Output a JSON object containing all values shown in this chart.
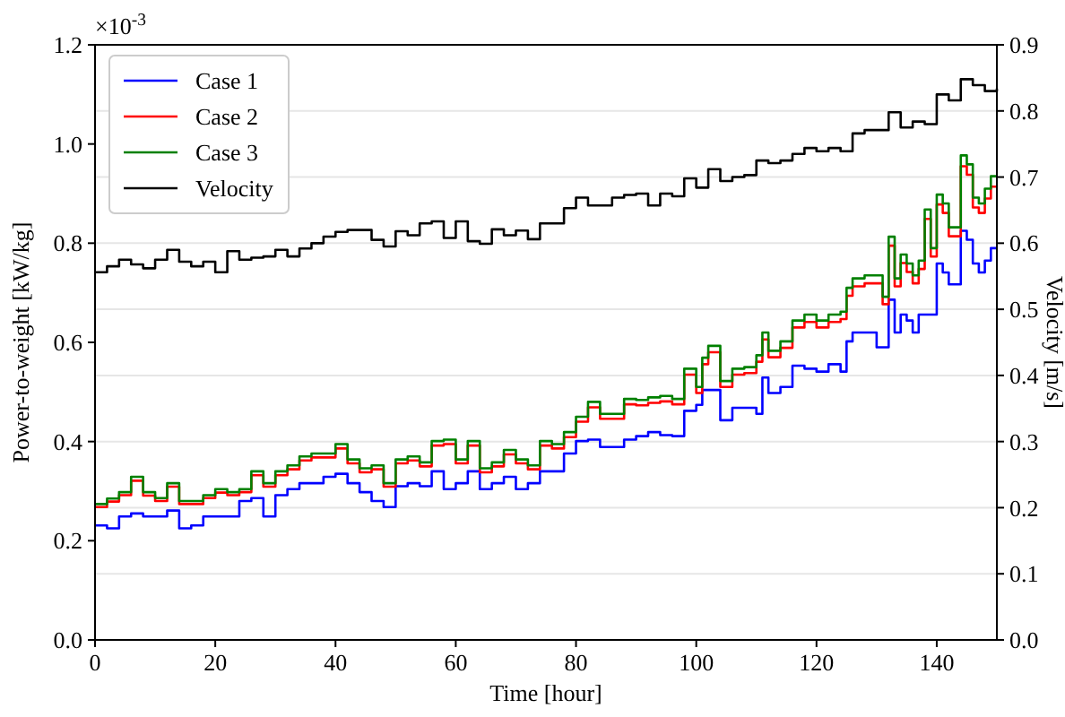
{
  "chart_data": {
    "type": "step",
    "xlabel": "Time [hour]",
    "ylabel": "Power-to-weight [kW/kg]",
    "y2label": "Velocity [m/s]",
    "annotations": [
      "×10$^{-3}$"
    ],
    "xlim": [
      0,
      150
    ],
    "xticks": [
      0,
      20,
      40,
      60,
      80,
      100,
      120,
      140
    ],
    "ylim": [
      0,
      1.2
    ],
    "yticks": [
      {
        "value": 0,
        "label": "0.0"
      },
      {
        "value": 0.2,
        "label": "0.2"
      },
      {
        "value": 0.4,
        "label": "0.4"
      },
      {
        "value": 0.6,
        "label": "0.6"
      },
      {
        "value": 0.8,
        "label": "0.8"
      },
      {
        "value": 1.0,
        "label": "1.0"
      },
      {
        "value": 1.2,
        "label": "1.2"
      }
    ],
    "y2lim": [
      0,
      0.9
    ],
    "y2ticks": [
      {
        "value": 0,
        "label": "0.0"
      },
      0.1,
      0.2,
      0.3,
      0.4,
      0.5,
      0.6,
      0.7,
      0.8,
      0.9
    ],
    "grid": "y2",
    "legend": "top left",
    "line_style": "solid",
    "marker": "none",
    "series": [
      {
        "name": "Case 1",
        "color": "#0000ff",
        "x": [
          0,
          2,
          4,
          6,
          8,
          10,
          12,
          14,
          16,
          18,
          20,
          22,
          24,
          26,
          28,
          30,
          32,
          34,
          36,
          38,
          40,
          42,
          44,
          46,
          48,
          50,
          52,
          54,
          56,
          58,
          60,
          62,
          64,
          66,
          68,
          70,
          72,
          74,
          76,
          78,
          80,
          82,
          84,
          86,
          88,
          90,
          92,
          94,
          96,
          98,
          100,
          101,
          102,
          104,
          106,
          108,
          110,
          111,
          112,
          114,
          116,
          118,
          120,
          122,
          124,
          125,
          126,
          128,
          130,
          131,
          132,
          133,
          134,
          135,
          136,
          137,
          138,
          139,
          140,
          141,
          142,
          143,
          144,
          145,
          146,
          147,
          148,
          149,
          150
        ],
        "values": [
          0.231,
          0.225,
          0.249,
          0.255,
          0.249,
          0.249,
          0.261,
          0.225,
          0.231,
          0.249,
          0.249,
          0.249,
          0.28,
          0.286,
          0.249,
          0.292,
          0.304,
          0.316,
          0.316,
          0.329,
          0.335,
          0.316,
          0.298,
          0.28,
          0.268,
          0.31,
          0.316,
          0.31,
          0.34,
          0.304,
          0.316,
          0.34,
          0.304,
          0.316,
          0.329,
          0.304,
          0.316,
          0.34,
          0.34,
          0.376,
          0.401,
          0.404,
          0.389,
          0.389,
          0.404,
          0.411,
          0.419,
          0.413,
          0.411,
          0.462,
          0.474,
          0.504,
          0.504,
          0.443,
          0.468,
          0.468,
          0.456,
          0.529,
          0.498,
          0.51,
          0.553,
          0.547,
          0.541,
          0.556,
          0.541,
          0.602,
          0.62,
          0.62,
          0.59,
          0.59,
          0.686,
          0.62,
          0.656,
          0.644,
          0.62,
          0.656,
          0.656,
          0.656,
          0.759,
          0.741,
          0.717,
          0.717,
          0.825,
          0.807,
          0.759,
          0.741,
          0.765,
          0.79,
          0.79
        ]
      },
      {
        "name": "Case 2",
        "color": "#ff0000",
        "x": [
          0,
          2,
          4,
          6,
          8,
          10,
          12,
          14,
          16,
          18,
          20,
          22,
          24,
          26,
          28,
          30,
          32,
          34,
          36,
          38,
          40,
          42,
          44,
          46,
          48,
          50,
          52,
          54,
          56,
          58,
          60,
          62,
          64,
          66,
          68,
          70,
          72,
          74,
          76,
          78,
          80,
          82,
          84,
          86,
          88,
          90,
          92,
          94,
          96,
          98,
          100,
          101,
          102,
          104,
          106,
          108,
          110,
          111,
          112,
          114,
          116,
          118,
          120,
          122,
          124,
          125,
          126,
          128,
          130,
          131,
          132,
          133,
          134,
          135,
          136,
          137,
          138,
          139,
          140,
          141,
          142,
          143,
          144,
          145,
          146,
          147,
          148,
          149,
          150
        ],
        "values": [
          0.268,
          0.279,
          0.292,
          0.321,
          0.291,
          0.28,
          0.309,
          0.274,
          0.274,
          0.286,
          0.297,
          0.292,
          0.298,
          0.332,
          0.309,
          0.332,
          0.344,
          0.362,
          0.368,
          0.368,
          0.386,
          0.356,
          0.338,
          0.344,
          0.309,
          0.356,
          0.362,
          0.35,
          0.392,
          0.395,
          0.356,
          0.392,
          0.338,
          0.35,
          0.374,
          0.356,
          0.344,
          0.392,
          0.386,
          0.409,
          0.44,
          0.469,
          0.446,
          0.446,
          0.475,
          0.473,
          0.478,
          0.481,
          0.475,
          0.535,
          0.498,
          0.556,
          0.58,
          0.51,
          0.535,
          0.538,
          0.561,
          0.606,
          0.57,
          0.589,
          0.63,
          0.641,
          0.63,
          0.641,
          0.647,
          0.694,
          0.713,
          0.719,
          0.719,
          0.677,
          0.795,
          0.713,
          0.76,
          0.742,
          0.719,
          0.748,
          0.849,
          0.773,
          0.878,
          0.861,
          0.814,
          0.814,
          0.955,
          0.938,
          0.872,
          0.861,
          0.89,
          0.914,
          0.914
        ]
      },
      {
        "name": "Case 3",
        "color": "#008000",
        "x": [
          0,
          2,
          4,
          6,
          8,
          10,
          12,
          14,
          16,
          18,
          20,
          22,
          24,
          26,
          28,
          30,
          32,
          34,
          36,
          38,
          40,
          42,
          44,
          46,
          48,
          50,
          52,
          54,
          56,
          58,
          60,
          62,
          64,
          66,
          68,
          70,
          72,
          74,
          76,
          78,
          80,
          82,
          84,
          86,
          88,
          90,
          92,
          94,
          96,
          98,
          100,
          101,
          102,
          104,
          106,
          108,
          110,
          111,
          112,
          114,
          116,
          118,
          120,
          122,
          124,
          125,
          126,
          128,
          130,
          131,
          132,
          133,
          134,
          135,
          136,
          137,
          138,
          139,
          140,
          141,
          142,
          143,
          144,
          145,
          146,
          147,
          148,
          149,
          150
        ],
        "values": [
          0.274,
          0.285,
          0.298,
          0.329,
          0.298,
          0.286,
          0.316,
          0.28,
          0.28,
          0.292,
          0.304,
          0.298,
          0.304,
          0.34,
          0.316,
          0.34,
          0.352,
          0.37,
          0.376,
          0.376,
          0.395,
          0.364,
          0.346,
          0.352,
          0.316,
          0.364,
          0.37,
          0.358,
          0.401,
          0.404,
          0.364,
          0.401,
          0.346,
          0.358,
          0.383,
          0.364,
          0.352,
          0.401,
          0.395,
          0.419,
          0.45,
          0.48,
          0.456,
          0.456,
          0.486,
          0.484,
          0.489,
          0.492,
          0.486,
          0.547,
          0.51,
          0.569,
          0.593,
          0.522,
          0.547,
          0.55,
          0.574,
          0.62,
          0.583,
          0.602,
          0.644,
          0.656,
          0.644,
          0.656,
          0.662,
          0.71,
          0.729,
          0.735,
          0.735,
          0.692,
          0.813,
          0.729,
          0.777,
          0.759,
          0.735,
          0.765,
          0.868,
          0.79,
          0.898,
          0.88,
          0.832,
          0.832,
          0.977,
          0.959,
          0.892,
          0.88,
          0.91,
          0.935,
          0.935
        ]
      },
      {
        "name": "Velocity",
        "color": "#000000",
        "axis": "y2",
        "x": [
          0,
          2,
          4,
          6,
          8,
          10,
          12,
          14,
          16,
          18,
          20,
          22,
          24,
          26,
          28,
          30,
          32,
          34,
          36,
          38,
          40,
          42,
          44,
          46,
          48,
          50,
          52,
          54,
          56,
          58,
          60,
          62,
          64,
          66,
          68,
          70,
          72,
          74,
          76,
          78,
          80,
          82,
          84,
          86,
          88,
          90,
          92,
          94,
          96,
          98,
          100,
          102,
          104,
          106,
          108,
          110,
          112,
          114,
          116,
          118,
          120,
          122,
          124,
          126,
          128,
          130,
          132,
          134,
          136,
          138,
          140,
          142,
          144,
          146,
          148,
          150
        ],
        "values": [
          0.556,
          0.565,
          0.575,
          0.568,
          0.562,
          0.575,
          0.59,
          0.572,
          0.565,
          0.572,
          0.556,
          0.588,
          0.575,
          0.578,
          0.58,
          0.59,
          0.58,
          0.592,
          0.6,
          0.61,
          0.617,
          0.62,
          0.62,
          0.605,
          0.595,
          0.618,
          0.612,
          0.63,
          0.633,
          0.608,
          0.633,
          0.603,
          0.599,
          0.621,
          0.612,
          0.619,
          0.606,
          0.63,
          0.63,
          0.653,
          0.669,
          0.657,
          0.657,
          0.669,
          0.673,
          0.675,
          0.657,
          0.675,
          0.671,
          0.698,
          0.684,
          0.712,
          0.694,
          0.7,
          0.703,
          0.725,
          0.721,
          0.725,
          0.735,
          0.744,
          0.739,
          0.744,
          0.739,
          0.766,
          0.771,
          0.771,
          0.798,
          0.775,
          0.784,
          0.78,
          0.825,
          0.816,
          0.848,
          0.839,
          0.83,
          0.834
        ]
      }
    ]
  }
}
